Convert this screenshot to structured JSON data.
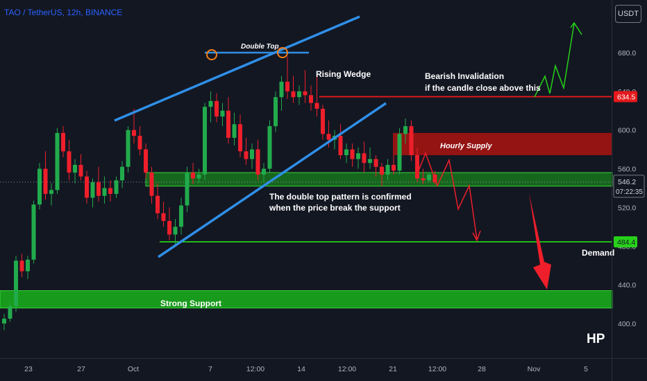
{
  "header": {
    "symbol_title": "TAO / TetherUS, 12h, BINANCE",
    "currency_button": "USDT"
  },
  "watermark": "HP",
  "colors": {
    "background": "#131722",
    "bull": "#22ab4c",
    "bear": "#ee1f2b",
    "trendline": "#2f8fe8",
    "support_zone": "#19a81c",
    "supply_zone": "#9b1313",
    "red_line": "#e5191c",
    "green_line": "#27d11a",
    "axis_text": "#b2b5be"
  },
  "chart_data": {
    "type": "candlestick",
    "title": "TAO / TetherUS, 12h, BINANCE",
    "ylim": [
      390,
      710
    ],
    "y_ticks": [
      400.0,
      440.0,
      480.0,
      520.0,
      560.0,
      600.0,
      640.0,
      680.0
    ],
    "x_tick_labels": [
      "23",
      "27",
      "Oct",
      "7",
      "12:00",
      "14",
      "12:00",
      "21",
      "12:00",
      "28",
      "Nov",
      "5"
    ],
    "candles": [
      {
        "o": 400,
        "h": 410,
        "l": 393,
        "c": 405
      },
      {
        "o": 405,
        "h": 422,
        "l": 402,
        "c": 418
      },
      {
        "o": 418,
        "h": 470,
        "l": 412,
        "c": 465
      },
      {
        "o": 465,
        "h": 472,
        "l": 448,
        "c": 454
      },
      {
        "o": 454,
        "h": 470,
        "l": 446,
        "c": 466
      },
      {
        "o": 466,
        "h": 527,
        "l": 462,
        "c": 523
      },
      {
        "o": 523,
        "h": 566,
        "l": 518,
        "c": 560
      },
      {
        "o": 560,
        "h": 578,
        "l": 528,
        "c": 534
      },
      {
        "o": 534,
        "h": 545,
        "l": 522,
        "c": 538
      },
      {
        "o": 538,
        "h": 602,
        "l": 534,
        "c": 597
      },
      {
        "o": 597,
        "h": 604,
        "l": 572,
        "c": 578
      },
      {
        "o": 578,
        "h": 590,
        "l": 548,
        "c": 556
      },
      {
        "o": 556,
        "h": 570,
        "l": 545,
        "c": 564
      },
      {
        "o": 564,
        "h": 575,
        "l": 548,
        "c": 552
      },
      {
        "o": 552,
        "h": 558,
        "l": 524,
        "c": 530
      },
      {
        "o": 530,
        "h": 550,
        "l": 520,
        "c": 546
      },
      {
        "o": 546,
        "h": 562,
        "l": 526,
        "c": 532
      },
      {
        "o": 532,
        "h": 552,
        "l": 524,
        "c": 540
      },
      {
        "o": 540,
        "h": 548,
        "l": 526,
        "c": 534
      },
      {
        "o": 534,
        "h": 552,
        "l": 530,
        "c": 548
      },
      {
        "o": 548,
        "h": 568,
        "l": 540,
        "c": 562
      },
      {
        "o": 562,
        "h": 604,
        "l": 556,
        "c": 600
      },
      {
        "o": 600,
        "h": 622,
        "l": 586,
        "c": 594
      },
      {
        "o": 594,
        "h": 604,
        "l": 574,
        "c": 580
      },
      {
        "o": 580,
        "h": 586,
        "l": 550,
        "c": 556
      },
      {
        "o": 556,
        "h": 562,
        "l": 524,
        "c": 532
      },
      {
        "o": 532,
        "h": 545,
        "l": 508,
        "c": 514
      },
      {
        "o": 514,
        "h": 526,
        "l": 500,
        "c": 506
      },
      {
        "o": 506,
        "h": 520,
        "l": 486,
        "c": 492
      },
      {
        "o": 492,
        "h": 508,
        "l": 482,
        "c": 500
      },
      {
        "o": 500,
        "h": 530,
        "l": 492,
        "c": 522
      },
      {
        "o": 522,
        "h": 562,
        "l": 515,
        "c": 556
      },
      {
        "o": 556,
        "h": 566,
        "l": 544,
        "c": 550
      },
      {
        "o": 550,
        "h": 560,
        "l": 545,
        "c": 554
      },
      {
        "o": 554,
        "h": 628,
        "l": 548,
        "c": 624
      },
      {
        "o": 624,
        "h": 640,
        "l": 608,
        "c": 630
      },
      {
        "o": 630,
        "h": 638,
        "l": 608,
        "c": 614
      },
      {
        "o": 614,
        "h": 628,
        "l": 604,
        "c": 620
      },
      {
        "o": 620,
        "h": 634,
        "l": 586,
        "c": 592
      },
      {
        "o": 592,
        "h": 618,
        "l": 584,
        "c": 606
      },
      {
        "o": 606,
        "h": 616,
        "l": 572,
        "c": 578
      },
      {
        "o": 578,
        "h": 592,
        "l": 564,
        "c": 570
      },
      {
        "o": 570,
        "h": 586,
        "l": 560,
        "c": 580
      },
      {
        "o": 580,
        "h": 590,
        "l": 548,
        "c": 554
      },
      {
        "o": 554,
        "h": 566,
        "l": 546,
        "c": 560
      },
      {
        "o": 560,
        "h": 610,
        "l": 556,
        "c": 604
      },
      {
        "o": 604,
        "h": 640,
        "l": 598,
        "c": 634
      },
      {
        "o": 634,
        "h": 656,
        "l": 620,
        "c": 650
      },
      {
        "o": 650,
        "h": 676,
        "l": 632,
        "c": 640
      },
      {
        "o": 640,
        "h": 656,
        "l": 628,
        "c": 634
      },
      {
        "o": 634,
        "h": 646,
        "l": 626,
        "c": 640
      },
      {
        "o": 640,
        "h": 662,
        "l": 628,
        "c": 636
      },
      {
        "o": 636,
        "h": 646,
        "l": 620,
        "c": 628
      },
      {
        "o": 628,
        "h": 656,
        "l": 614,
        "c": 622
      },
      {
        "o": 622,
        "h": 626,
        "l": 590,
        "c": 596
      },
      {
        "o": 596,
        "h": 610,
        "l": 582,
        "c": 590
      },
      {
        "o": 590,
        "h": 600,
        "l": 580,
        "c": 594
      },
      {
        "o": 594,
        "h": 606,
        "l": 570,
        "c": 574
      },
      {
        "o": 574,
        "h": 586,
        "l": 566,
        "c": 580
      },
      {
        "o": 580,
        "h": 586,
        "l": 562,
        "c": 570
      },
      {
        "o": 570,
        "h": 582,
        "l": 560,
        "c": 576
      },
      {
        "o": 576,
        "h": 588,
        "l": 556,
        "c": 566
      },
      {
        "o": 566,
        "h": 582,
        "l": 560,
        "c": 570
      },
      {
        "o": 570,
        "h": 574,
        "l": 552,
        "c": 562
      },
      {
        "o": 562,
        "h": 566,
        "l": 542,
        "c": 554
      },
      {
        "o": 554,
        "h": 570,
        "l": 548,
        "c": 564
      },
      {
        "o": 564,
        "h": 574,
        "l": 554,
        "c": 558
      },
      {
        "o": 558,
        "h": 602,
        "l": 554,
        "c": 596
      },
      {
        "o": 596,
        "h": 612,
        "l": 586,
        "c": 604
      },
      {
        "o": 604,
        "h": 610,
        "l": 568,
        "c": 574
      },
      {
        "o": 574,
        "h": 582,
        "l": 546,
        "c": 550
      },
      {
        "o": 550,
        "h": 560,
        "l": 544,
        "c": 548
      },
      {
        "o": 548,
        "h": 556,
        "l": 546,
        "c": 554
      },
      {
        "o": 554,
        "h": 558,
        "l": 544,
        "c": 546
      }
    ],
    "current_price": "546.2",
    "countdown": "07:22:35",
    "price_labels": [
      {
        "price": 634.5,
        "label": "634.5",
        "color": "#e5191c"
      },
      {
        "price": 484.4,
        "label": "484.4",
        "color": "#27d11a"
      }
    ],
    "zones": [
      {
        "name": "Hourly Supply",
        "top": 597,
        "bottom": 574
      },
      {
        "name": "Support",
        "top": 556,
        "bottom": 542
      },
      {
        "name": "Strong Support",
        "top": 434,
        "bottom": 416
      }
    ],
    "annotations": {
      "double_top": "Double Top",
      "rising_wedge": "Rising Wedge",
      "bearish_invalidation": [
        "Bearish Invalidation",
        "if the candle close above this"
      ],
      "hourly_supply": "Hourly Supply",
      "double_top_confirm": [
        "The double top pattern is confirmed",
        "when the price break the support"
      ],
      "demand": "Demand",
      "strong_support": "Strong Support"
    }
  }
}
